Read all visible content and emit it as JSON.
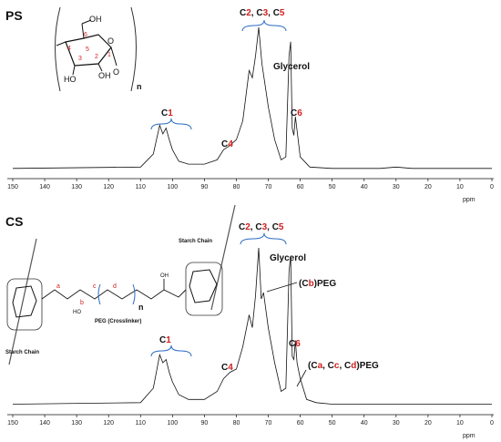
{
  "chart_data": [
    {
      "type": "line",
      "panel_label": "PS",
      "xlabel": "ppm",
      "xlim": [
        150,
        0
      ],
      "x_ticks": [
        "150",
        "140",
        "130",
        "120",
        "110",
        "100",
        "90",
        "80",
        "70",
        "60",
        "50",
        "40",
        "30",
        "20",
        "10",
        "0"
      ],
      "series": [
        {
          "x": [
            150,
            110,
            106,
            104,
            103,
            102,
            101,
            100,
            98,
            95,
            90,
            86,
            84,
            82,
            80,
            78,
            76,
            75,
            74,
            73,
            72,
            71,
            70,
            68,
            66,
            64.5,
            63.5,
            63,
            62.5,
            62,
            61.5,
            60,
            57,
            50,
            35,
            30,
            25,
            10,
            0
          ],
          "y": [
            0.02,
            0.03,
            0.12,
            0.32,
            0.26,
            0.3,
            0.22,
            0.15,
            0.07,
            0.05,
            0.05,
            0.08,
            0.15,
            0.18,
            0.22,
            0.35,
            0.7,
            0.65,
            0.8,
            1.0,
            0.75,
            0.6,
            0.45,
            0.22,
            0.08,
            0.1,
            0.8,
            0.9,
            0.3,
            0.25,
            0.38,
            0.1,
            0.03,
            0.02,
            0.02,
            0.03,
            0.02,
            0.02,
            0.02
          ]
        }
      ],
      "annotations": [
        {
          "text": "C1",
          "x": 103
        },
        {
          "text": "C4",
          "x": 82
        },
        {
          "text": "C2, C3, C5",
          "x": 73
        },
        {
          "text": "Glycerol",
          "x": 63
        },
        {
          "text": "C6",
          "x": 61.5
        }
      ],
      "inset_labels": {
        "oh_top": "OH",
        "ho": "HO",
        "oh_ring": "OH",
        "n": "n",
        "atoms": [
          "6",
          "5",
          "4",
          "3",
          "2",
          "1"
        ]
      }
    },
    {
      "type": "line",
      "panel_label": "CS",
      "xlabel": "ppm",
      "xlim": [
        150,
        0
      ],
      "x_ticks": [
        "150",
        "140",
        "130",
        "120",
        "110",
        "100",
        "90",
        "80",
        "70",
        "60",
        "50",
        "40",
        "30",
        "20",
        "10",
        "0"
      ],
      "series": [
        {
          "x": [
            150,
            110,
            106,
            104,
            103,
            102,
            101,
            100,
            98,
            95,
            90,
            86,
            84,
            82,
            80,
            78,
            76,
            75,
            74,
            73,
            72.2,
            71.5,
            70,
            68,
            66,
            64.5,
            63.5,
            63,
            62.5,
            62,
            61.5,
            61,
            60,
            58,
            55,
            50,
            40,
            30,
            20,
            10,
            0
          ],
          "y": [
            0.02,
            0.03,
            0.12,
            0.33,
            0.28,
            0.3,
            0.22,
            0.16,
            0.08,
            0.05,
            0.05,
            0.1,
            0.18,
            0.22,
            0.24,
            0.38,
            0.58,
            0.5,
            0.7,
            1.0,
            0.68,
            0.72,
            0.5,
            0.28,
            0.1,
            0.12,
            0.85,
            0.95,
            0.32,
            0.3,
            0.42,
            0.28,
            0.18,
            0.05,
            0.03,
            0.02,
            0.02,
            0.02,
            0.02,
            0.02,
            0.02
          ]
        }
      ],
      "annotations": [
        {
          "text": "C1",
          "x": 103
        },
        {
          "text": "C4",
          "x": 82
        },
        {
          "text": "C2, C3, C5",
          "x": 73
        },
        {
          "text": "Glycerol",
          "x": 63
        },
        {
          "text": "(Cb)PEG",
          "x": 72
        },
        {
          "text": "C6",
          "x": 61.5
        },
        {
          "text": "(Ca, Cc, Cd)PEG",
          "x": 60
        }
      ],
      "inset_labels": {
        "chain_top": "Starch Chain",
        "chain_bottom": "Starch Chain",
        "peg": "PEG (Crosslinker)",
        "n": "n",
        "atoms": [
          "a",
          "b",
          "c",
          "d"
        ],
        "oh": "OH",
        "ho": "HO"
      }
    }
  ]
}
